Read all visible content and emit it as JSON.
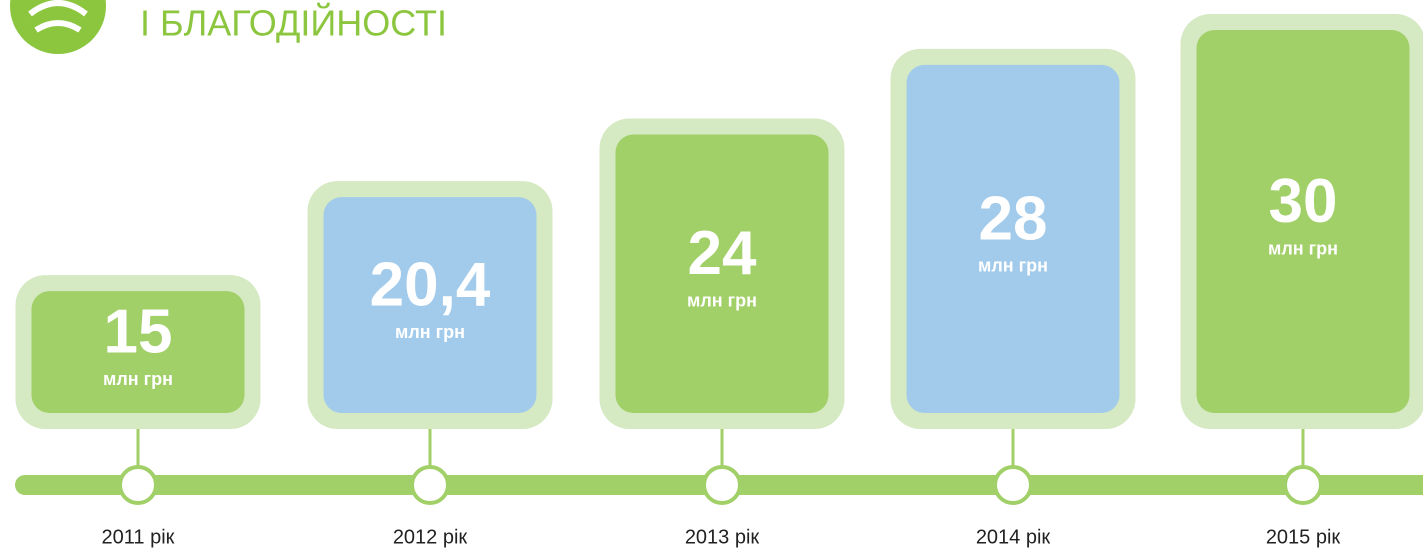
{
  "chart_data": {
    "type": "bar",
    "title": "І БЛАГОДІЙНОСТІ",
    "categories": [
      "2011 рік",
      "2012 рік",
      "2013 рік",
      "2014 рік",
      "2015 рік"
    ],
    "values": [
      15,
      20.4,
      24,
      28,
      30
    ],
    "value_labels": [
      "15",
      "20,4",
      "24",
      "28",
      "30"
    ],
    "value_unit": "млн грн",
    "colors": [
      "#a1cf68",
      "#a2cbeb",
      "#a1cf68",
      "#a2cbeb",
      "#a1cf68"
    ],
    "ylim": [
      8,
      30
    ]
  }
}
